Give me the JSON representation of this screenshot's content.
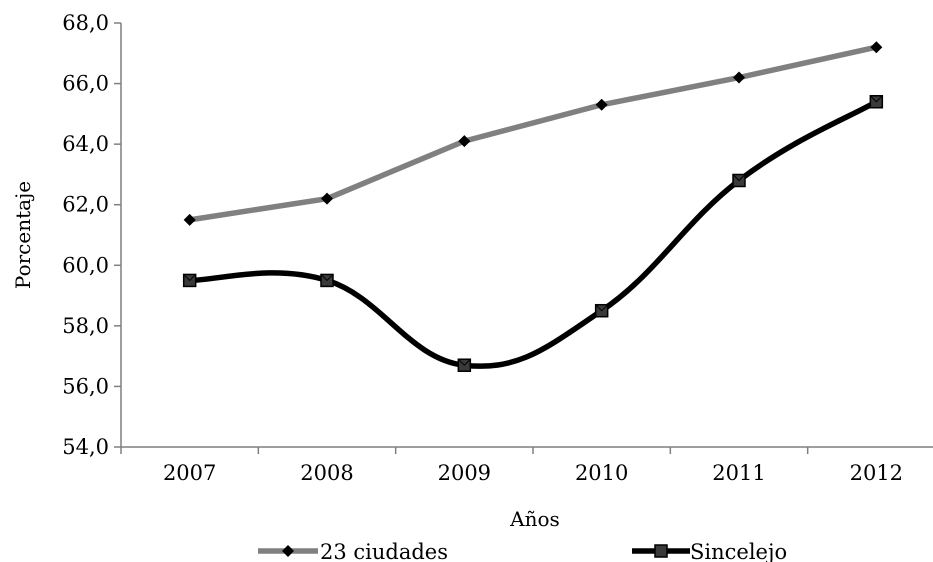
{
  "chart_data": {
    "type": "line",
    "title": "",
    "xlabel": "Años",
    "ylabel": "Porcentaje",
    "categories": [
      "2007",
      "2008",
      "2009",
      "2010",
      "2011",
      "2012"
    ],
    "ylim": [
      54.0,
      68.0
    ],
    "yticks": [
      "54,0",
      "56,0",
      "58,0",
      "60,0",
      "62,0",
      "64,0",
      "66,0",
      "68,0"
    ],
    "grid": false,
    "legend_position": "bottom",
    "series": [
      {
        "name": "23 ciudades",
        "values": [
          61.5,
          62.2,
          64.1,
          65.3,
          66.2,
          67.2
        ],
        "color": "#808080",
        "marker": "diamond",
        "smooth": false
      },
      {
        "name": "Sincelejo",
        "values": [
          59.5,
          59.5,
          56.7,
          58.5,
          62.8,
          65.4
        ],
        "color": "#000000",
        "marker": "square",
        "smooth": true
      }
    ]
  }
}
